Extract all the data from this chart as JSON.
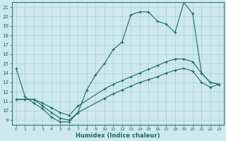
{
  "xlabel": "Humidex (Indice chaleur)",
  "bg_color": "#cde8ee",
  "grid_color": "#b0d4dc",
  "line_color": "#1a6b60",
  "xlim": [
    -0.5,
    23.5
  ],
  "ylim": [
    8.5,
    21.5
  ],
  "xticks": [
    0,
    1,
    2,
    3,
    4,
    5,
    6,
    7,
    8,
    9,
    10,
    11,
    12,
    13,
    14,
    15,
    16,
    17,
    18,
    19,
    20,
    21,
    22,
    23
  ],
  "yticks": [
    9,
    10,
    11,
    12,
    13,
    14,
    15,
    16,
    17,
    18,
    19,
    20,
    21
  ],
  "line1_x": [
    0,
    1,
    2,
    3,
    4,
    5,
    6,
    7,
    8,
    9,
    10,
    11,
    12,
    13,
    14,
    15,
    16,
    17,
    18,
    19,
    20,
    21,
    22,
    23
  ],
  "line1_y": [
    14.5,
    11.5,
    10.8,
    10.2,
    9.3,
    8.8,
    8.8,
    9.8,
    12.2,
    13.8,
    15.0,
    16.5,
    17.3,
    20.2,
    20.5,
    20.5,
    19.5,
    19.2,
    18.3,
    21.5,
    20.3,
    14.0,
    13.0,
    12.8
  ],
  "line2_x": [
    0,
    1,
    2,
    3,
    4,
    5,
    6,
    7,
    10,
    11,
    12,
    13,
    14,
    15,
    16,
    17,
    18,
    19,
    20,
    21,
    22,
    23
  ],
  "line2_y": [
    11.2,
    11.2,
    11.2,
    10.8,
    10.3,
    9.8,
    9.5,
    10.5,
    12.3,
    12.8,
    13.2,
    13.6,
    14.0,
    14.4,
    14.8,
    15.2,
    15.5,
    15.5,
    15.2,
    14.0,
    13.0,
    12.8
  ],
  "line3_x": [
    0,
    1,
    2,
    3,
    4,
    5,
    6,
    7,
    10,
    11,
    12,
    13,
    14,
    15,
    16,
    17,
    18,
    19,
    20,
    21,
    22,
    23
  ],
  "line3_y": [
    11.2,
    11.2,
    11.2,
    10.5,
    9.8,
    9.2,
    9.0,
    9.8,
    11.3,
    11.8,
    12.2,
    12.6,
    13.0,
    13.3,
    13.6,
    14.0,
    14.3,
    14.5,
    14.2,
    13.0,
    12.5,
    12.8
  ]
}
